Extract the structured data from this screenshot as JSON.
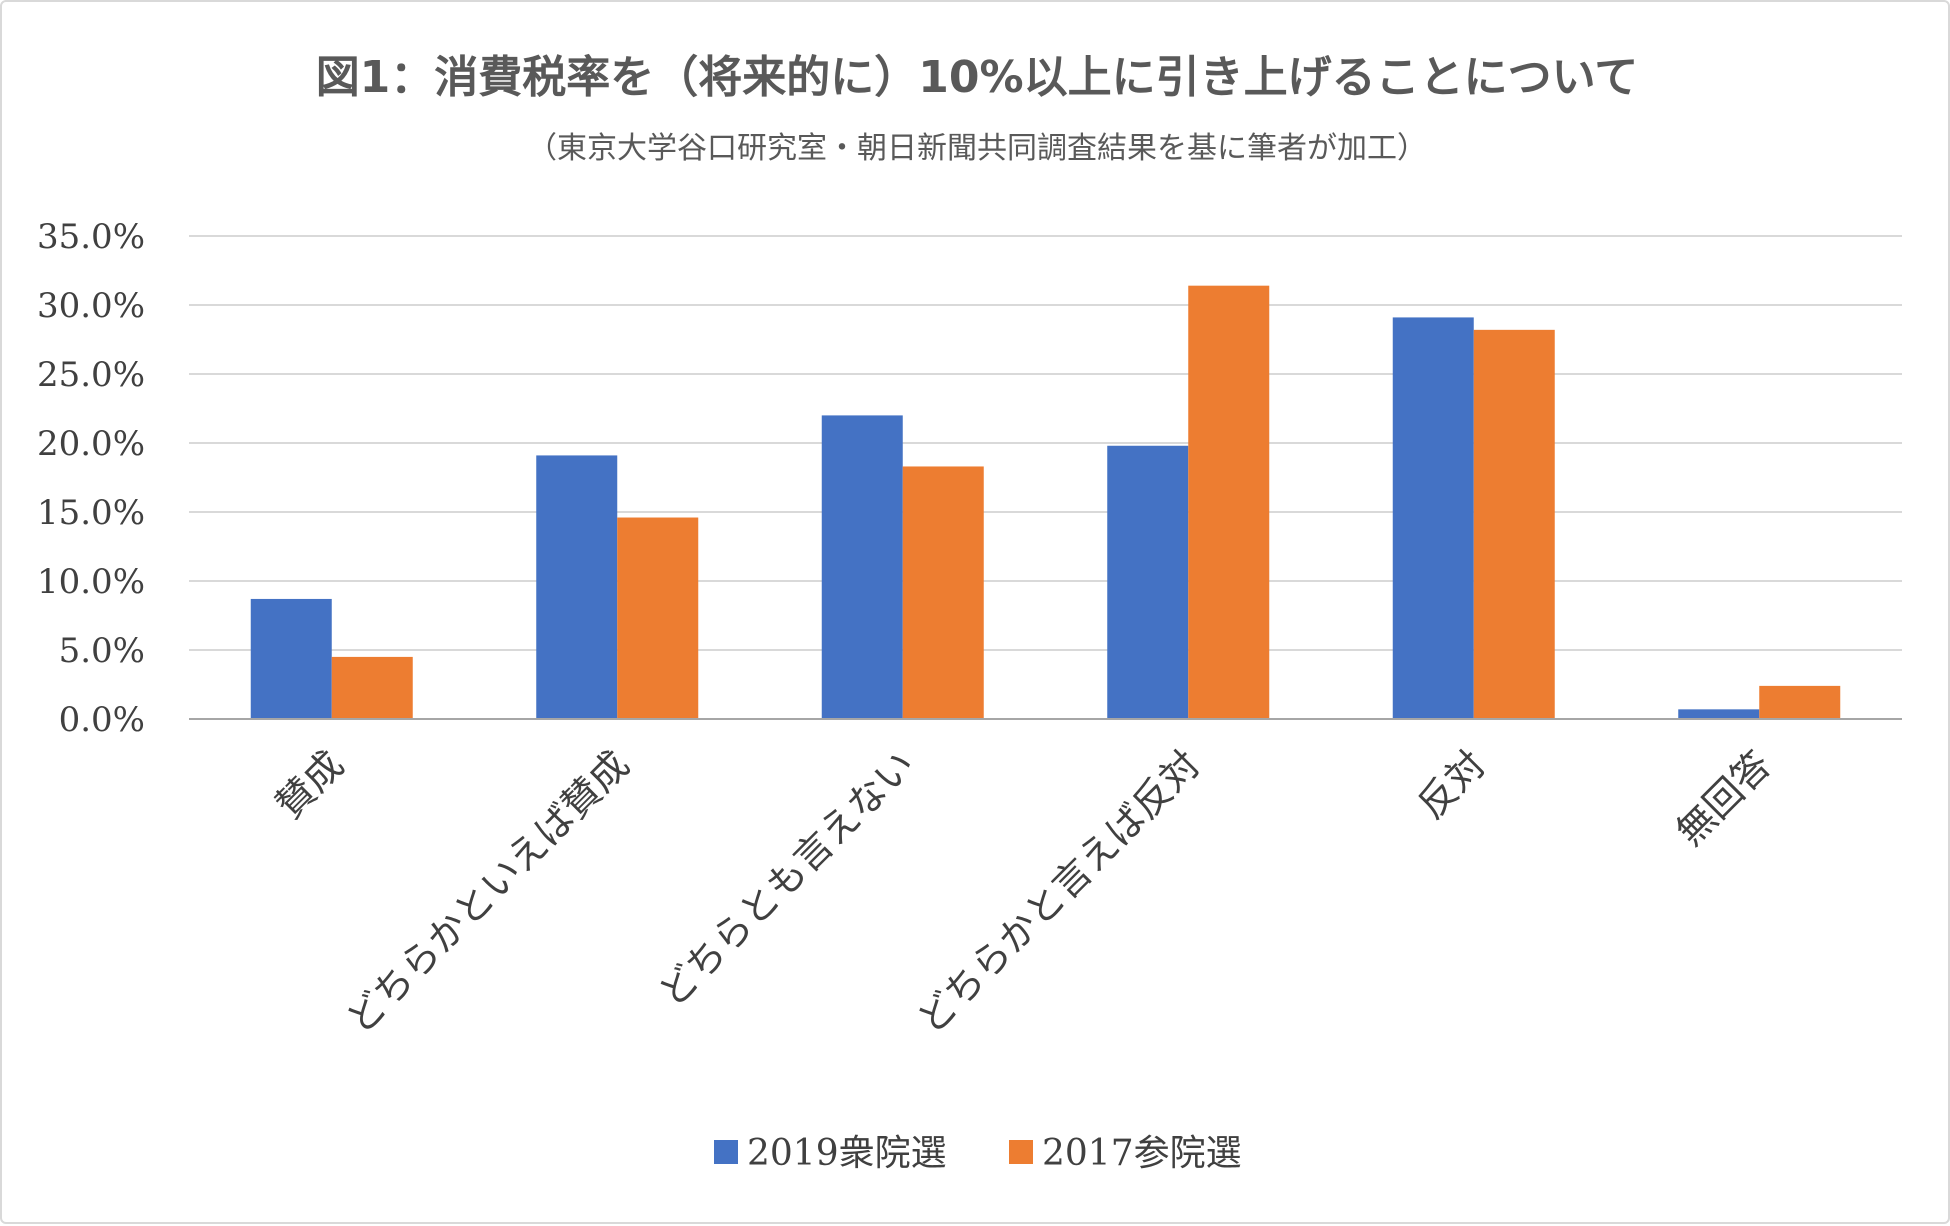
{
  "chart_data": {
    "type": "bar",
    "title": "図1：消費税率を（将来的に）10%以上に引き上げることについて",
    "subtitle": "（東京大学谷口研究室・朝日新聞共同調査結果を基に筆者が加工）",
    "categories": [
      "賛成",
      "どちらかといえば賛成",
      "どちらとも言えない",
      "どちらかと言えば反対",
      "反対",
      "無回答"
    ],
    "series": [
      {
        "name": "2019衆院選",
        "color": "#4472C4",
        "values": [
          8.7,
          19.1,
          22.0,
          19.8,
          29.1,
          0.7
        ]
      },
      {
        "name": "2017参院選",
        "color": "#ED7D31",
        "values": [
          4.5,
          14.6,
          18.3,
          31.4,
          28.2,
          2.4
        ]
      }
    ],
    "y_ticks": [
      "0.0%",
      "5.0%",
      "10.0%",
      "15.0%",
      "20.0%",
      "25.0%",
      "30.0%",
      "35.0%"
    ],
    "ylim": [
      0,
      35
    ],
    "y_unit": "%",
    "grid": true,
    "legend_position": "bottom",
    "gridline_color": "#d9d9d9",
    "axis_color": "#a6a6a6"
  }
}
